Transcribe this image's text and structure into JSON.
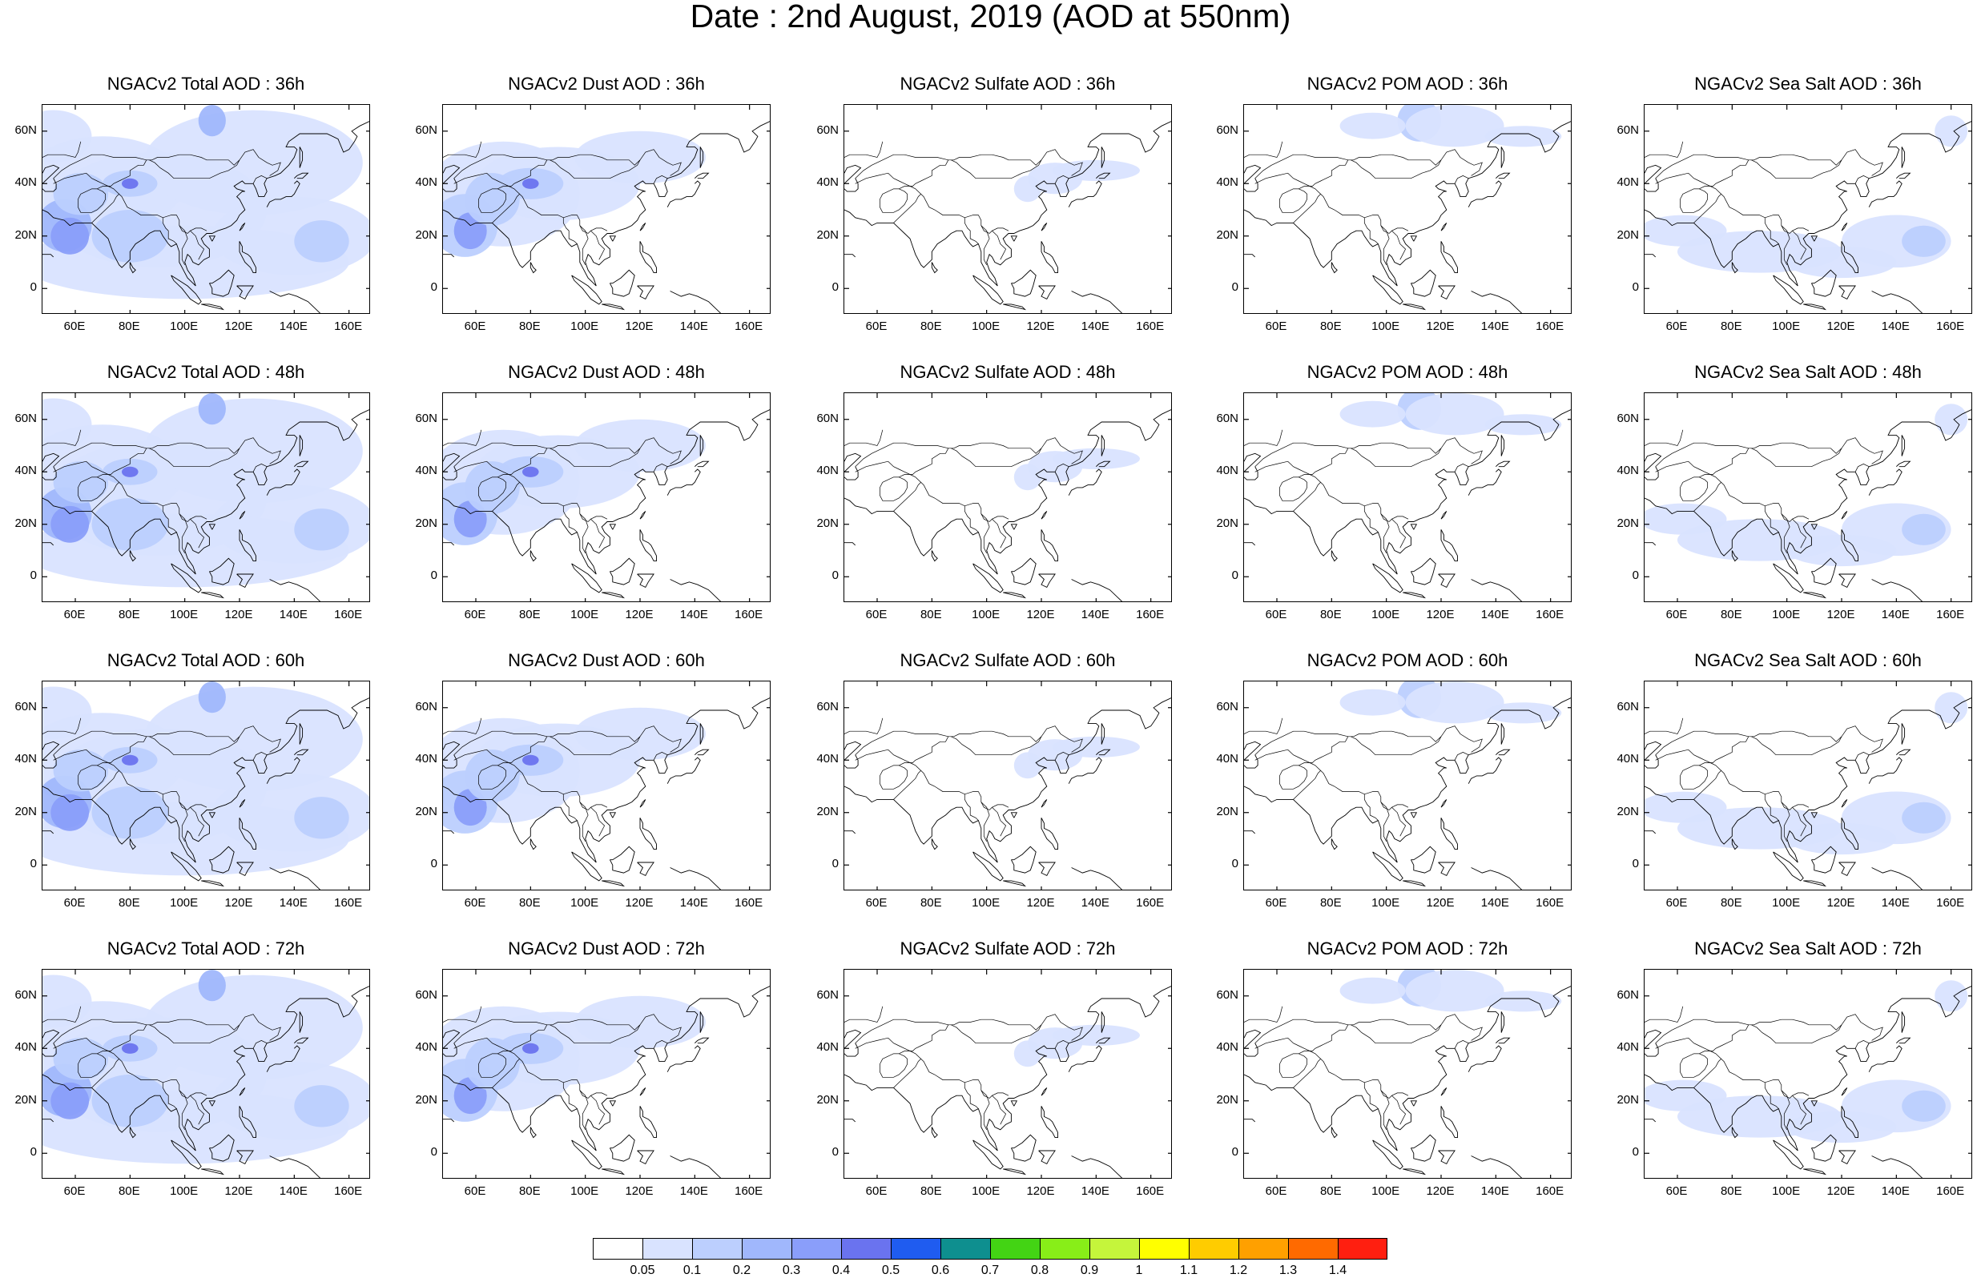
{
  "title": "Date : 2nd August, 2019 (AOD at 550nm)",
  "panels": [
    [
      "NGACv2 Total AOD : 36h",
      "NGACv2 Dust AOD : 36h",
      "NGACv2 Sulfate AOD : 36h",
      "NGACv2 POM AOD : 36h",
      "NGACv2 Sea Salt AOD : 36h"
    ],
    [
      "NGACv2 Total AOD : 48h",
      "NGACv2 Dust AOD : 48h",
      "NGACv2 Sulfate AOD : 48h",
      "NGACv2 POM AOD : 48h",
      "NGACv2 Sea Salt AOD : 48h"
    ],
    [
      "NGACv2 Total AOD : 60h",
      "NGACv2 Dust AOD : 60h",
      "NGACv2 Sulfate AOD : 60h",
      "NGACv2 POM AOD : 60h",
      "NGACv2 Sea Salt AOD : 60h"
    ],
    [
      "NGACv2 Total AOD : 72h",
      "NGACv2 Dust AOD : 72h",
      "NGACv2 Sulfate AOD : 72h",
      "NGACv2 POM AOD : 72h",
      "NGACv2 Sea Salt  AOD : 72h"
    ]
  ],
  "lat_labels": [
    "60N",
    "40N",
    "20N",
    "0"
  ],
  "lon_labels": [
    "60E",
    "80E",
    "100E",
    "120E",
    "140E",
    "160E"
  ],
  "colorbar": {
    "labels": [
      "0.05",
      "0.1",
      "0.2",
      "0.3",
      "0.4",
      "0.5",
      "0.6",
      "0.7",
      "0.8",
      "0.9",
      "1",
      "1.1",
      "1.2",
      "1.3",
      "1.4"
    ],
    "colors": [
      "#ffffff",
      "#d9e3ff",
      "#bccffe",
      "#a0b7fc",
      "#8a9efa",
      "#6a73ef",
      "#1f5cf0",
      "#0e8f8f",
      "#43d414",
      "#88ee18",
      "#c5f53b",
      "#ffff00",
      "#ffcc00",
      "#ffa000",
      "#ff6a00",
      "#ff1f10"
    ]
  }
}
